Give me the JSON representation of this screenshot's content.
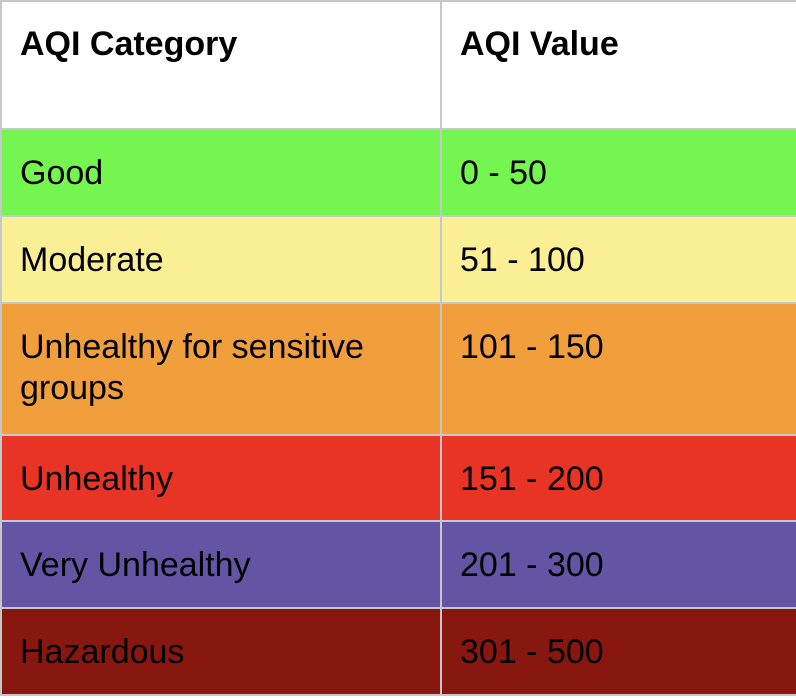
{
  "table": {
    "headers": {
      "category": "AQI Category",
      "value": "AQI Value"
    },
    "rows": [
      {
        "category": "Good",
        "value": "0 - 50",
        "color": "#74f54f"
      },
      {
        "category": "Moderate",
        "value": "51 - 100",
        "color": "#fbef96"
      },
      {
        "category": "Unhealthy for sensitive groups",
        "value": "101 - 150",
        "color": "#f19e3c"
      },
      {
        "category": "Unhealthy",
        "value": "151 - 200",
        "color": "#e83425"
      },
      {
        "category": "Very Unhealthy",
        "value": "201 - 300",
        "color": "#6454a4"
      },
      {
        "category": "Hazardous",
        "value": "301 - 500",
        "color": "#881710"
      }
    ]
  }
}
